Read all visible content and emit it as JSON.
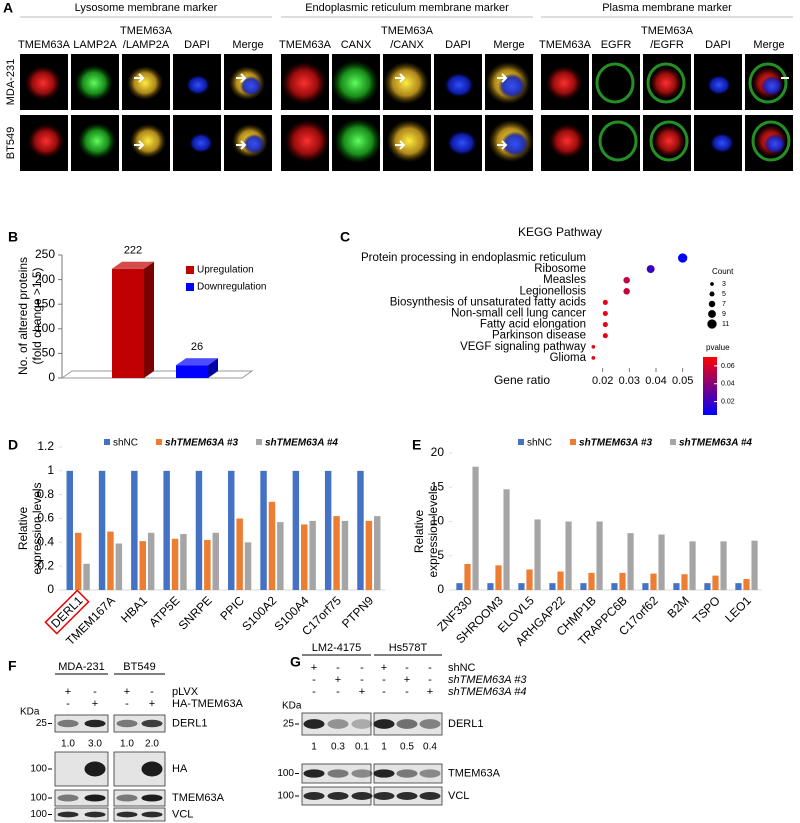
{
  "panels": {
    "A": {
      "letter": "A",
      "groups": [
        {
          "title": "Lysosome membrane marker",
          "columns": [
            [
              "TMEM63A"
            ],
            [
              "LAMP2A"
            ],
            [
              "TMEM63A",
              "/LAMP2A"
            ],
            [
              "DAPI"
            ],
            [
              "Merge"
            ]
          ]
        },
        {
          "title": "Endoplasmic reticulum membrane marker",
          "columns": [
            [
              "TMEM63A"
            ],
            [
              "CANX"
            ],
            [
              "TMEM63A",
              "/CANX"
            ],
            [
              "DAPI"
            ],
            [
              "Merge"
            ]
          ]
        },
        {
          "title": "Plasma membrane marker",
          "columns": [
            [
              "TMEM63A"
            ],
            [
              "EGFR"
            ],
            [
              "TMEM63A",
              "/EGFR"
            ],
            [
              "DAPI"
            ],
            [
              "Merge"
            ]
          ]
        }
      ],
      "column_colors": [
        [
          "#ee1111"
        ],
        [
          "#11a011"
        ],
        [
          "#ee1111",
          "#11a011"
        ],
        [
          "#000000"
        ],
        [
          "#000000"
        ]
      ],
      "rows": [
        "MDA-231",
        "BT549"
      ]
    },
    "F": {
      "letter": "F",
      "cell_lines": [
        "MDA-231",
        "BT549"
      ],
      "conditions": [
        {
          "name": "pLVX",
          "signs": [
            "+",
            "-",
            "+",
            "-"
          ]
        },
        {
          "name": "HA-TMEM63A",
          "signs": [
            "-",
            "+",
            "-",
            "+"
          ]
        }
      ],
      "kda_label": "KDa",
      "blots": [
        {
          "name": "DERL1",
          "marker": "25",
          "quant": [
            "1.0",
            "3.0",
            "1.0",
            "2.0"
          ]
        },
        {
          "name": "HA",
          "marker": "100"
        },
        {
          "name": "TMEM63A",
          "marker": "100"
        },
        {
          "name": "VCL",
          "marker": "100"
        }
      ]
    },
    "G": {
      "letter": "G",
      "cell_lines": [
        "LM2-4175",
        "Hs578T"
      ],
      "conditions": [
        {
          "name": "shNC",
          "signs": [
            "+",
            "-",
            "-",
            "+",
            "-",
            "-"
          ]
        },
        {
          "name": "shTMEM63A #3",
          "signs": [
            "-",
            "+",
            "-",
            "-",
            "+",
            "-"
          ]
        },
        {
          "name": "shTMEM63A #4",
          "signs": [
            "-",
            "-",
            "+",
            "-",
            "-",
            "+"
          ]
        }
      ],
      "kda_label": "KDa",
      "blots": [
        {
          "name": "DERL1",
          "marker": "25",
          "quant": [
            "1",
            "0.3",
            "0.1",
            "1",
            "0.5",
            "0.4"
          ]
        },
        {
          "name": "TMEM63A",
          "marker": "100"
        },
        {
          "name": "VCL",
          "marker": "100"
        }
      ]
    }
  },
  "chart_data": [
    {
      "type": "bar",
      "panel": "B",
      "ylabel": [
        "No. of altered proteins",
        "(fold change >1.5)"
      ],
      "categories": [
        "Upregulation",
        "Downregulation"
      ],
      "values": [
        222,
        26
      ],
      "colors": [
        "#c00000",
        "#0000ff"
      ],
      "ylim": [
        0,
        250
      ],
      "yticks": [
        0,
        50,
        100,
        150,
        200,
        250
      ]
    },
    {
      "type": "dot",
      "panel": "C",
      "title": "KEGG Pathway",
      "xlabel": "Gene ratio",
      "categories": [
        "Protein processing in endoplasmic reticulum",
        "Ribosome",
        "Measles",
        "Legionellosis",
        "Biosynthesis of unsaturated fatty acids",
        "Non-small cell lung cancer",
        "Fatty acid elongation",
        "Parkinson disease",
        "VEGF signaling pathway",
        "Glioma"
      ],
      "values": [
        0.05,
        0.038,
        0.029,
        0.029,
        0.021,
        0.021,
        0.021,
        0.021,
        0.0165,
        0.0165
      ],
      "counts": [
        11,
        9,
        7,
        7,
        5,
        5,
        5,
        5,
        3,
        3
      ],
      "pvalues": [
        0.005,
        0.02,
        0.055,
        0.055,
        0.065,
        0.065,
        0.065,
        0.065,
        0.065,
        0.065
      ],
      "xlim": [
        0.016,
        0.052
      ],
      "xticks": [
        0.02,
        0.03,
        0.04,
        0.05
      ],
      "size_legend": {
        "title": "Count",
        "values": [
          3,
          5,
          7,
          9,
          11
        ]
      },
      "colorbar": {
        "title": "pvalue",
        "lim": [
          0.005,
          0.07
        ],
        "ticks": [
          0.06,
          0.04,
          0.02
        ],
        "colors": [
          "#0000ff",
          "#ff0000"
        ]
      }
    },
    {
      "type": "bar",
      "panel": "D",
      "ylabel": [
        "Relative",
        "expression levels"
      ],
      "categories": [
        "DERL1",
        "TMEM167A",
        "HBA1",
        "ATP5E",
        "SNRPE",
        "PPIC",
        "S100A2",
        "S100A4",
        "C17orf75",
        "PTPN9"
      ],
      "series": [
        {
          "name": "shNC",
          "color": "#4472c4",
          "values": [
            1,
            1,
            1,
            1,
            1,
            1,
            1,
            1,
            1,
            1
          ]
        },
        {
          "name": "shTMEM63A #3",
          "color": "#ed7d31",
          "values": [
            0.48,
            0.49,
            0.41,
            0.43,
            0.42,
            0.6,
            0.74,
            0.55,
            0.62,
            0.58
          ]
        },
        {
          "name": "shTMEM63A #4",
          "color": "#a5a5a5",
          "values": [
            0.22,
            0.39,
            0.48,
            0.47,
            0.48,
            0.4,
            0.57,
            0.58,
            0.58,
            0.62
          ]
        }
      ],
      "ylim": [
        0,
        1.2
      ],
      "yticks": [
        0,
        0.2,
        0.4,
        0.6,
        0.8,
        1,
        1.2
      ]
    },
    {
      "type": "bar",
      "panel": "E",
      "ylabel": [
        "Relative",
        "expression levels"
      ],
      "categories": [
        "ZNF330",
        "SHROOM3",
        "ELOVL5",
        "ARHGAP22",
        "CHMP1B",
        "TRAPPC6B",
        "C17orf62",
        "B2M",
        "TSPO",
        "LEO1"
      ],
      "series": [
        {
          "name": "shNC",
          "color": "#4472c4",
          "values": [
            1,
            1,
            1,
            1,
            1,
            1,
            1,
            1,
            1,
            1
          ]
        },
        {
          "name": "shTMEM63A #3",
          "color": "#ed7d31",
          "values": [
            3.8,
            3.6,
            3.0,
            2.7,
            2.5,
            2.5,
            2.4,
            2.3,
            2.1,
            1.6
          ]
        },
        {
          "name": "shTMEM63A #4",
          "color": "#a5a5a5",
          "values": [
            18,
            14.7,
            10.3,
            10,
            10,
            8.3,
            8.1,
            7.1,
            7.1,
            7.2
          ]
        }
      ],
      "ylim": [
        0,
        20
      ],
      "yticks": [
        0,
        5,
        10,
        15,
        20
      ]
    }
  ]
}
